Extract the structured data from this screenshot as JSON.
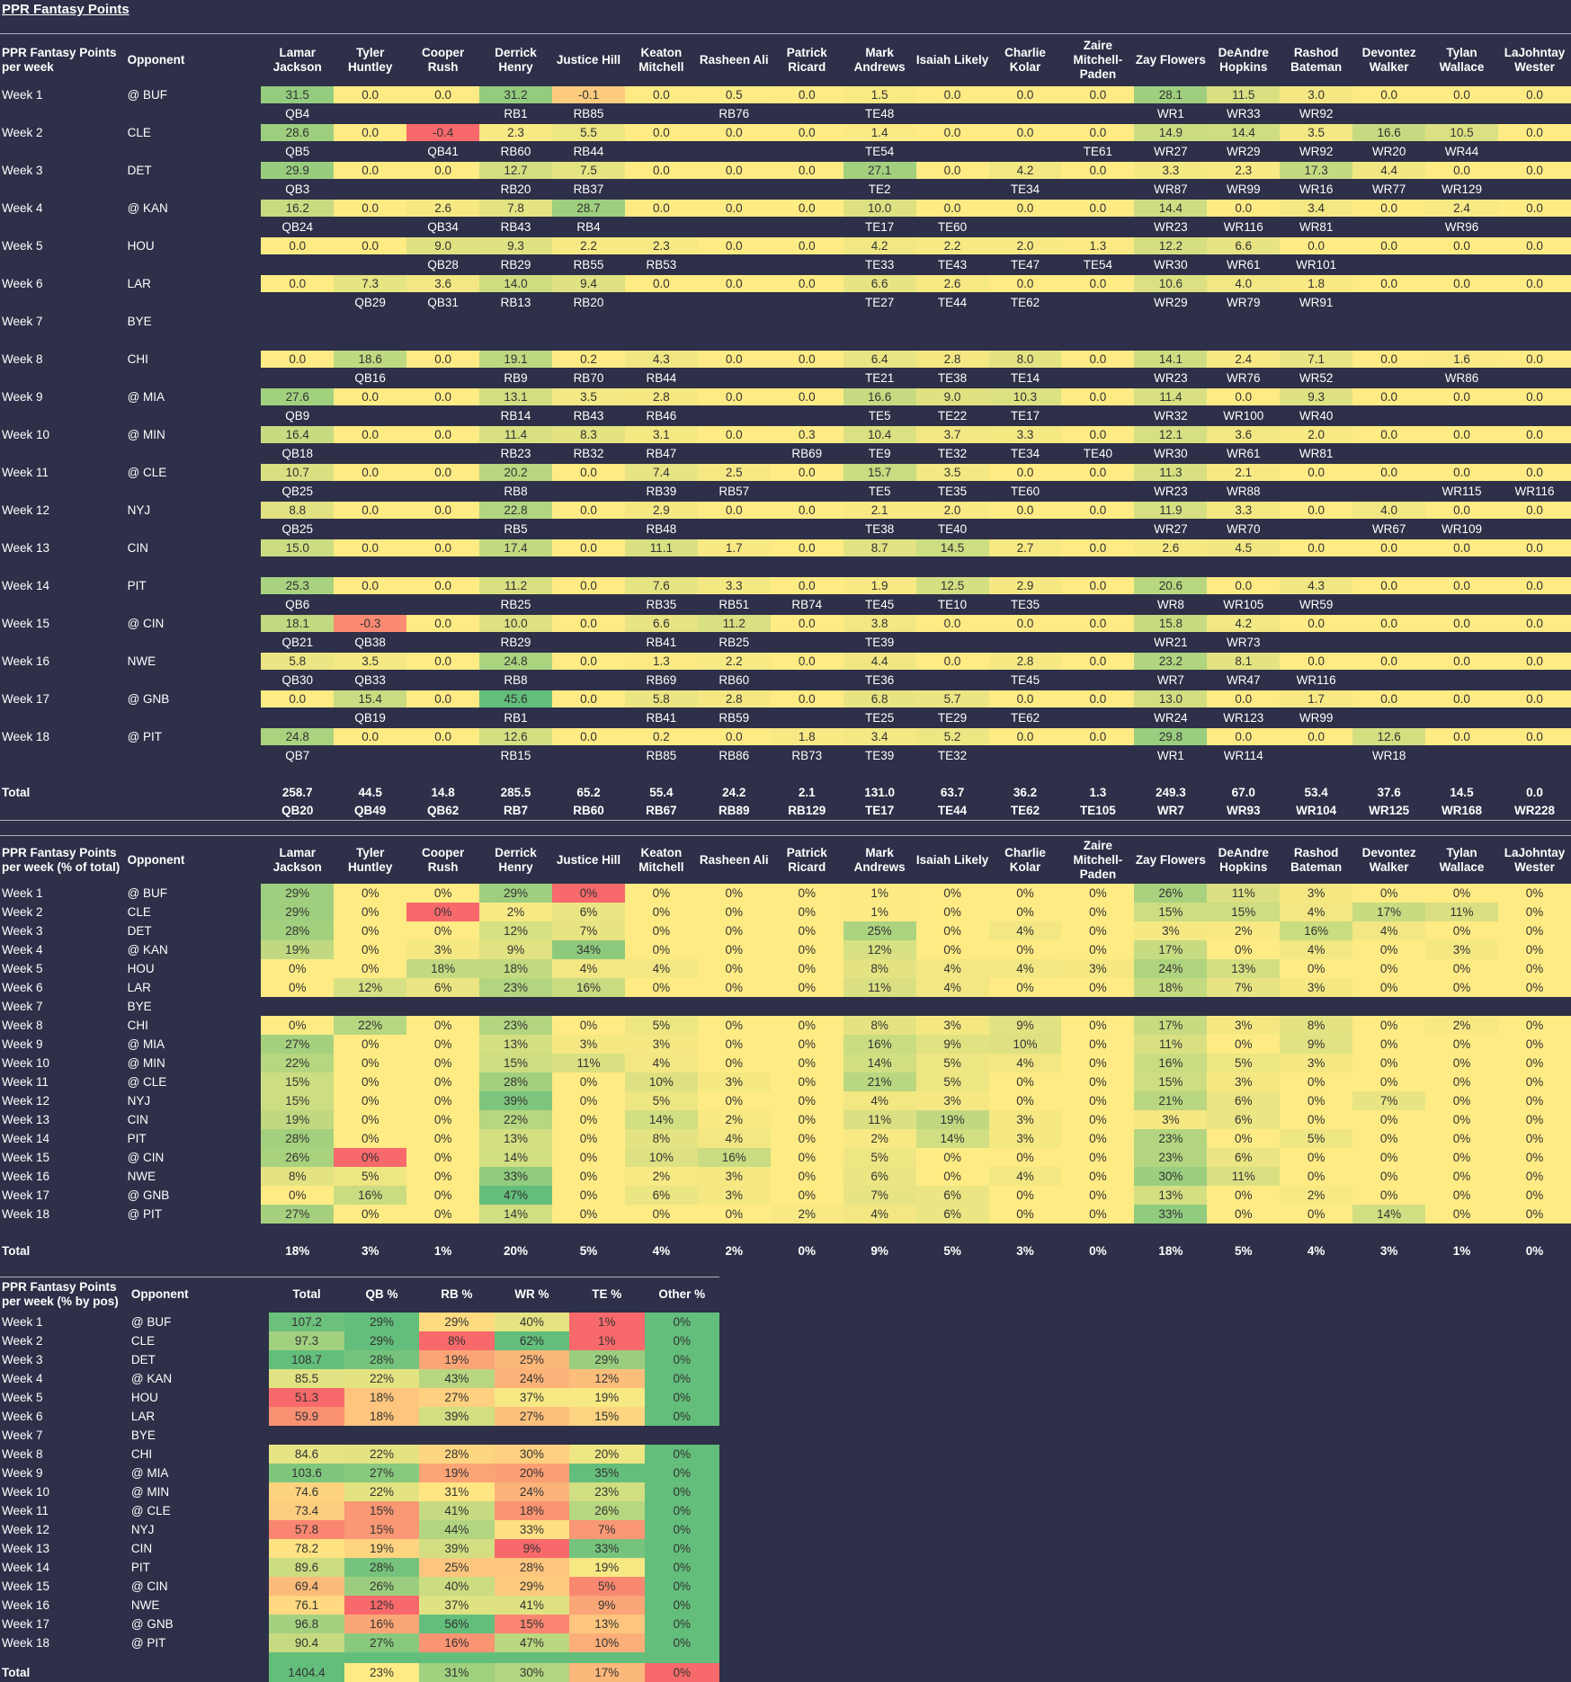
{
  "page_title": "PPR Fantasy Points",
  "players": [
    "Lamar Jackson",
    "Tyler Huntley",
    "Cooper Rush",
    "Derrick Henry",
    "Justice Hill",
    "Keaton Mitchell",
    "Rasheen Ali",
    "Patrick Ricard",
    "Mark Andrews",
    "Isaiah Likely",
    "Charlie Kolar",
    "Zaire Mitchell-Paden",
    "Zay Flowers",
    "DeAndre Hopkins",
    "Rashod Bateman",
    "Devontez Walker",
    "Tylan Wallace",
    "LaJohntay Wester"
  ],
  "weeks": [
    "Week 1",
    "Week 2",
    "Week 3",
    "Week 4",
    "Week 5",
    "Week 6",
    "Week 7",
    "Week 8",
    "Week 9",
    "Week 10",
    "Week 11",
    "Week 12",
    "Week 13",
    "Week 14",
    "Week 15",
    "Week 16",
    "Week 17",
    "Week 18"
  ],
  "opponents": [
    "@ BUF",
    "CLE",
    "DET",
    "@ KAN",
    "HOU",
    "LAR",
    "BYE",
    "CHI",
    "@ MIA",
    "@ MIN",
    "@ CLE",
    "NYJ",
    "CIN",
    "PIT",
    "@ CIN",
    "NWE",
    "@ GNB",
    "@ PIT"
  ],
  "table1": {
    "header": "PPR Fantasy Points per week",
    "opp_header": "Opponent",
    "total_label": "Total",
    "points": [
      [
        "31.5",
        "0.0",
        "0.0",
        "31.2",
        "-0.1",
        "0.0",
        "0.5",
        "0.0",
        "1.5",
        "0.0",
        "0.0",
        "0.0",
        "28.1",
        "11.5",
        "3.0",
        "0.0",
        "0.0",
        "0.0"
      ],
      [
        "28.6",
        "0.0",
        "-0.4",
        "2.3",
        "5.5",
        "0.0",
        "0.0",
        "0.0",
        "1.4",
        "0.0",
        "0.0",
        "0.0",
        "14.9",
        "14.4",
        "3.5",
        "16.6",
        "10.5",
        "0.0"
      ],
      [
        "29.9",
        "0.0",
        "0.0",
        "12.7",
        "7.5",
        "0.0",
        "0.0",
        "0.0",
        "27.1",
        "0.0",
        "4.2",
        "0.0",
        "3.3",
        "2.3",
        "17.3",
        "4.4",
        "0.0",
        "0.0"
      ],
      [
        "16.2",
        "0.0",
        "2.6",
        "7.8",
        "28.7",
        "0.0",
        "0.0",
        "0.0",
        "10.0",
        "0.0",
        "0.0",
        "0.0",
        "14.4",
        "0.0",
        "3.4",
        "0.0",
        "2.4",
        "0.0"
      ],
      [
        "0.0",
        "0.0",
        "9.0",
        "9.3",
        "2.2",
        "2.3",
        "0.0",
        "0.0",
        "4.2",
        "2.2",
        "2.0",
        "1.3",
        "12.2",
        "6.6",
        "0.0",
        "0.0",
        "0.0",
        "0.0"
      ],
      [
        "0.0",
        "7.3",
        "3.6",
        "14.0",
        "9.4",
        "0.0",
        "0.0",
        "0.0",
        "6.6",
        "2.6",
        "0.0",
        "0.0",
        "10.6",
        "4.0",
        "1.8",
        "0.0",
        "0.0",
        "0.0"
      ],
      [
        "",
        "",
        "",
        "",
        "",
        "",
        "",
        "",
        "",
        "",
        "",
        "",
        "",
        "",
        "",
        "",
        "",
        ""
      ],
      [
        "0.0",
        "18.6",
        "0.0",
        "19.1",
        "0.2",
        "4.3",
        "0.0",
        "0.0",
        "6.4",
        "2.8",
        "8.0",
        "0.0",
        "14.1",
        "2.4",
        "7.1",
        "0.0",
        "1.6",
        "0.0"
      ],
      [
        "27.6",
        "0.0",
        "0.0",
        "13.1",
        "3.5",
        "2.8",
        "0.0",
        "0.0",
        "16.6",
        "9.0",
        "10.3",
        "0.0",
        "11.4",
        "0.0",
        "9.3",
        "0.0",
        "0.0",
        "0.0"
      ],
      [
        "16.4",
        "0.0",
        "0.0",
        "11.4",
        "8.3",
        "3.1",
        "0.0",
        "0.3",
        "10.4",
        "3.7",
        "3.3",
        "0.0",
        "12.1",
        "3.6",
        "2.0",
        "0.0",
        "0.0",
        "0.0"
      ],
      [
        "10.7",
        "0.0",
        "0.0",
        "20.2",
        "0.0",
        "7.4",
        "2.5",
        "0.0",
        "15.7",
        "3.5",
        "0.0",
        "0.0",
        "11.3",
        "2.1",
        "0.0",
        "0.0",
        "0.0",
        "0.0"
      ],
      [
        "8.8",
        "0.0",
        "0.0",
        "22.8",
        "0.0",
        "2.9",
        "0.0",
        "0.0",
        "2.1",
        "2.0",
        "0.0",
        "0.0",
        "11.9",
        "3.3",
        "0.0",
        "4.0",
        "0.0",
        "0.0"
      ],
      [
        "15.0",
        "0.0",
        "0.0",
        "17.4",
        "0.0",
        "11.1",
        "1.7",
        "0.0",
        "8.7",
        "14.5",
        "2.7",
        "0.0",
        "2.6",
        "4.5",
        "0.0",
        "0.0",
        "0.0",
        "0.0"
      ],
      [
        "25.3",
        "0.0",
        "0.0",
        "11.2",
        "0.0",
        "7.6",
        "3.3",
        "0.0",
        "1.9",
        "12.5",
        "2.9",
        "0.0",
        "20.6",
        "0.0",
        "4.3",
        "0.0",
        "0.0",
        "0.0"
      ],
      [
        "18.1",
        "-0.3",
        "0.0",
        "10.0",
        "0.0",
        "6.6",
        "11.2",
        "0.0",
        "3.8",
        "0.0",
        "0.0",
        "0.0",
        "15.8",
        "4.2",
        "0.0",
        "0.0",
        "0.0",
        "0.0"
      ],
      [
        "5.8",
        "3.5",
        "0.0",
        "24.8",
        "0.0",
        "1.3",
        "2.2",
        "0.0",
        "4.4",
        "0.0",
        "2.8",
        "0.0",
        "23.2",
        "8.1",
        "0.0",
        "0.0",
        "0.0",
        "0.0"
      ],
      [
        "0.0",
        "15.4",
        "0.0",
        "45.6",
        "0.0",
        "5.8",
        "2.8",
        "0.0",
        "6.8",
        "5.7",
        "0.0",
        "0.0",
        "13.0",
        "0.0",
        "1.7",
        "0.0",
        "0.0",
        "0.0"
      ],
      [
        "24.8",
        "0.0",
        "0.0",
        "12.6",
        "0.0",
        "0.2",
        "0.0",
        "1.8",
        "3.4",
        "5.2",
        "0.0",
        "0.0",
        "29.8",
        "0.0",
        "0.0",
        "12.6",
        "0.0",
        "0.0"
      ]
    ],
    "ranks": [
      [
        "QB4",
        "",
        "",
        "RB1",
        "RB85",
        "",
        "RB76",
        "",
        "TE48",
        "",
        "",
        "",
        "WR1",
        "WR33",
        "WR92",
        "",
        "",
        ""
      ],
      [
        "QB5",
        "",
        "QB41",
        "RB60",
        "RB44",
        "",
        "",
        "",
        "TE54",
        "",
        "",
        "TE61",
        "WR27",
        "WR29",
        "WR92",
        "WR20",
        "WR44",
        ""
      ],
      [
        "QB3",
        "",
        "",
        "RB20",
        "RB37",
        "",
        "",
        "",
        "TE2",
        "",
        "TE34",
        "",
        "WR87",
        "WR99",
        "WR16",
        "WR77",
        "WR129",
        ""
      ],
      [
        "QB24",
        "",
        "QB34",
        "RB43",
        "RB4",
        "",
        "",
        "",
        "TE17",
        "TE60",
        "",
        "",
        "WR23",
        "WR116",
        "WR81",
        "",
        "WR96",
        ""
      ],
      [
        "",
        "",
        "QB28",
        "RB29",
        "RB55",
        "RB53",
        "",
        "",
        "TE33",
        "TE43",
        "TE47",
        "TE54",
        "WR30",
        "WR61",
        "WR101",
        "",
        "",
        ""
      ],
      [
        "",
        "QB29",
        "QB31",
        "RB13",
        "RB20",
        "",
        "",
        "",
        "TE27",
        "TE44",
        "TE62",
        "",
        "WR29",
        "WR79",
        "WR91",
        "",
        "",
        ""
      ],
      [
        "",
        "",
        "",
        "",
        "",
        "",
        "",
        "",
        "",
        "",
        "",
        "",
        "",
        "",
        "",
        "",
        "",
        ""
      ],
      [
        "",
        "QB16",
        "",
        "RB9",
        "RB70",
        "RB44",
        "",
        "",
        "TE21",
        "TE38",
        "TE14",
        "",
        "WR23",
        "WR76",
        "WR52",
        "",
        "WR86",
        ""
      ],
      [
        "QB9",
        "",
        "",
        "RB14",
        "RB43",
        "RB46",
        "",
        "",
        "TE5",
        "TE22",
        "TE17",
        "",
        "WR32",
        "WR100",
        "WR40",
        "",
        "",
        ""
      ],
      [
        "QB18",
        "",
        "",
        "RB23",
        "RB32",
        "RB47",
        "",
        "RB69",
        "TE9",
        "TE32",
        "TE34",
        "TE40",
        "WR30",
        "WR61",
        "WR81",
        "",
        "",
        ""
      ],
      [
        "QB25",
        "",
        "",
        "RB8",
        "",
        "RB39",
        "RB57",
        "",
        "TE5",
        "TE35",
        "TE60",
        "",
        "WR23",
        "WR88",
        "",
        "",
        "WR115",
        "WR116"
      ],
      [
        "QB25",
        "",
        "",
        "RB5",
        "",
        "RB48",
        "",
        "",
        "TE38",
        "TE40",
        "",
        "",
        "WR27",
        "WR70",
        "",
        "WR67",
        "WR109",
        ""
      ],
      [
        "",
        "",
        "",
        "",
        "",
        "",
        "",
        "",
        "",
        "",
        "",
        "",
        "",
        "",
        "",
        "",
        "",
        ""
      ],
      [
        "QB6",
        "",
        "",
        "RB25",
        "",
        "RB35",
        "RB51",
        "RB74",
        "TE45",
        "TE10",
        "TE35",
        "",
        "WR8",
        "WR105",
        "WR59",
        "",
        "",
        ""
      ],
      [
        "QB21",
        "QB38",
        "",
        "RB29",
        "",
        "RB41",
        "RB25",
        "",
        "TE39",
        "",
        "",
        "",
        "WR21",
        "WR73",
        "",
        "",
        "",
        ""
      ],
      [
        "QB30",
        "QB33",
        "",
        "RB8",
        "",
        "RB69",
        "RB60",
        "",
        "TE36",
        "",
        "TE45",
        "",
        "WR7",
        "WR47",
        "WR116",
        "",
        "",
        ""
      ],
      [
        "",
        "QB19",
        "",
        "RB1",
        "",
        "RB41",
        "RB59",
        "",
        "TE25",
        "TE29",
        "TE62",
        "",
        "WR24",
        "WR123",
        "WR99",
        "",
        "",
        ""
      ],
      [
        "QB7",
        "",
        "",
        "RB15",
        "",
        "RB85",
        "RB86",
        "RB73",
        "TE39",
        "TE32",
        "",
        "",
        "WR1",
        "WR114",
        "",
        "WR18",
        "",
        ""
      ]
    ],
    "totals": [
      "258.7",
      "44.5",
      "14.8",
      "285.5",
      "65.2",
      "55.4",
      "24.2",
      "2.1",
      "131.0",
      "63.7",
      "36.2",
      "1.3",
      "249.3",
      "67.0",
      "53.4",
      "37.6",
      "14.5",
      "0.0"
    ],
    "total_ranks": [
      "QB20",
      "QB49",
      "QB62",
      "RB7",
      "RB60",
      "RB67",
      "RB89",
      "RB129",
      "TE17",
      "TE44",
      "TE62",
      "TE105",
      "WR7",
      "WR93",
      "WR104",
      "WR125",
      "WR168",
      "WR228"
    ]
  },
  "table2": {
    "header": "PPR Fantasy Points per week (% of total)",
    "opp_header": "Opponent",
    "total_label": "Total",
    "pcts": [
      [
        29,
        0,
        0,
        29,
        0,
        0,
        0,
        0,
        1,
        0,
        0,
        0,
        26,
        11,
        3,
        0,
        0,
        0
      ],
      [
        29,
        0,
        0,
        2,
        6,
        0,
        0,
        0,
        1,
        0,
        0,
        0,
        15,
        15,
        4,
        17,
        11,
        0
      ],
      [
        28,
        0,
        0,
        12,
        7,
        0,
        0,
        0,
        25,
        0,
        4,
        0,
        3,
        2,
        16,
        4,
        0,
        0
      ],
      [
        19,
        0,
        3,
        9,
        34,
        0,
        0,
        0,
        12,
        0,
        0,
        0,
        17,
        0,
        4,
        0,
        3,
        0
      ],
      [
        0,
        0,
        18,
        18,
        4,
        4,
        0,
        0,
        8,
        4,
        4,
        3,
        24,
        13,
        0,
        0,
        0,
        0
      ],
      [
        0,
        12,
        6,
        23,
        16,
        0,
        0,
        0,
        11,
        4,
        0,
        0,
        18,
        7,
        3,
        0,
        0,
        0
      ],
      null,
      [
        0,
        22,
        0,
        23,
        0,
        5,
        0,
        0,
        8,
        3,
        9,
        0,
        17,
        3,
        8,
        0,
        2,
        0
      ],
      [
        27,
        0,
        0,
        13,
        3,
        3,
        0,
        0,
        16,
        9,
        10,
        0,
        11,
        0,
        9,
        0,
        0,
        0
      ],
      [
        22,
        0,
        0,
        15,
        11,
        4,
        0,
        0,
        14,
        5,
        4,
        0,
        16,
        5,
        3,
        0,
        0,
        0
      ],
      [
        15,
        0,
        0,
        28,
        0,
        10,
        3,
        0,
        21,
        5,
        0,
        0,
        15,
        3,
        0,
        0,
        0,
        0
      ],
      [
        15,
        0,
        0,
        39,
        0,
        5,
        0,
        0,
        4,
        3,
        0,
        0,
        21,
        6,
        0,
        7,
        0,
        0
      ],
      [
        19,
        0,
        0,
        22,
        0,
        14,
        2,
        0,
        11,
        19,
        3,
        0,
        3,
        6,
        0,
        0,
        0,
        0
      ],
      [
        28,
        0,
        0,
        13,
        0,
        8,
        4,
        0,
        2,
        14,
        3,
        0,
        23,
        0,
        5,
        0,
        0,
        0
      ],
      [
        26,
        0,
        0,
        14,
        0,
        10,
        16,
        0,
        5,
        0,
        0,
        0,
        23,
        6,
        0,
        0,
        0,
        0
      ],
      [
        8,
        5,
        0,
        33,
        0,
        2,
        3,
        0,
        6,
        0,
        4,
        0,
        30,
        11,
        0,
        0,
        0,
        0
      ],
      [
        0,
        16,
        0,
        47,
        0,
        6,
        3,
        0,
        7,
        6,
        0,
        0,
        13,
        0,
        2,
        0,
        0,
        0
      ],
      [
        27,
        0,
        0,
        14,
        0,
        0,
        0,
        2,
        4,
        6,
        0,
        0,
        33,
        0,
        0,
        14,
        0,
        0
      ]
    ],
    "totals": [
      "18%",
      "3%",
      "1%",
      "20%",
      "5%",
      "4%",
      "2%",
      "0%",
      "9%",
      "5%",
      "3%",
      "0%",
      "18%",
      "5%",
      "4%",
      "3%",
      "1%",
      "0%"
    ]
  },
  "table3": {
    "header": "PPR Fantasy Points per week (% by pos)",
    "opp_header": "Opponent",
    "columns": [
      "Total",
      "QB %",
      "RB %",
      "WR %",
      "TE %",
      "Other %"
    ],
    "total_label": "Total",
    "rows": [
      [
        "107.2",
        "29%",
        "29%",
        "40%",
        "1%",
        "0%"
      ],
      [
        "97.3",
        "29%",
        "8%",
        "62%",
        "1%",
        "0%"
      ],
      [
        "108.7",
        "28%",
        "19%",
        "25%",
        "29%",
        "0%"
      ],
      [
        "85.5",
        "22%",
        "43%",
        "24%",
        "12%",
        "0%"
      ],
      [
        "51.3",
        "18%",
        "27%",
        "37%",
        "19%",
        "0%"
      ],
      [
        "59.9",
        "18%",
        "39%",
        "27%",
        "15%",
        "0%"
      ],
      null,
      [
        "84.6",
        "22%",
        "28%",
        "30%",
        "20%",
        "0%"
      ],
      [
        "103.6",
        "27%",
        "19%",
        "20%",
        "35%",
        "0%"
      ],
      [
        "74.6",
        "22%",
        "31%",
        "24%",
        "23%",
        "0%"
      ],
      [
        "73.4",
        "15%",
        "41%",
        "18%",
        "26%",
        "0%"
      ],
      [
        "57.8",
        "15%",
        "44%",
        "33%",
        "7%",
        "0%"
      ],
      [
        "78.2",
        "19%",
        "39%",
        "9%",
        "33%",
        "0%"
      ],
      [
        "89.6",
        "28%",
        "25%",
        "28%",
        "19%",
        "0%"
      ],
      [
        "69.4",
        "26%",
        "40%",
        "29%",
        "5%",
        "0%"
      ],
      [
        "76.1",
        "12%",
        "37%",
        "41%",
        "9%",
        "0%"
      ],
      [
        "96.8",
        "16%",
        "56%",
        "15%",
        "13%",
        "0%"
      ],
      [
        "90.4",
        "27%",
        "16%",
        "47%",
        "10%",
        "0%"
      ]
    ],
    "totals": [
      "1404.4",
      "23%",
      "31%",
      "30%",
      "17%",
      "0%"
    ]
  },
  "colors": {
    "background": "#2e2f48",
    "scale_red": "#f8696b",
    "scale_yellow": "#ffeb84",
    "scale_green": "#63be7b"
  }
}
